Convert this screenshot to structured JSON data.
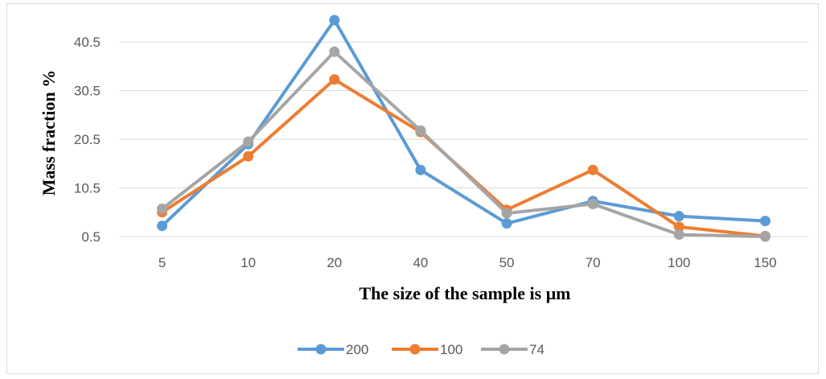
{
  "chart_data": {
    "type": "line",
    "title": "",
    "xlabel": "The size of the sample is μm",
    "ylabel": "Mass fraction  %",
    "categories": [
      "5",
      "10",
      "20",
      "40",
      "50",
      "70",
      "100",
      "150"
    ],
    "y_ticks": [
      "0.5",
      "10.5",
      "20.5",
      "30.5",
      "40.5"
    ],
    "ylim": [
      0.5,
      45.5
    ],
    "grid": "horizontal",
    "legend_position": "bottom",
    "series": [
      {
        "name": "200",
        "color": "#5b9bd5",
        "values": [
          2.7,
          19.5,
          45.0,
          14.2,
          3.2,
          7.8,
          4.7,
          3.7
        ]
      },
      {
        "name": "100",
        "color": "#ed7d31",
        "values": [
          5.5,
          17.0,
          32.8,
          22.0,
          6.0,
          14.2,
          2.5,
          0.6
        ]
      },
      {
        "name": "74",
        "color": "#a5a5a5",
        "values": [
          6.2,
          20.0,
          38.5,
          22.3,
          5.3,
          7.2,
          0.9,
          0.5
        ]
      }
    ]
  }
}
